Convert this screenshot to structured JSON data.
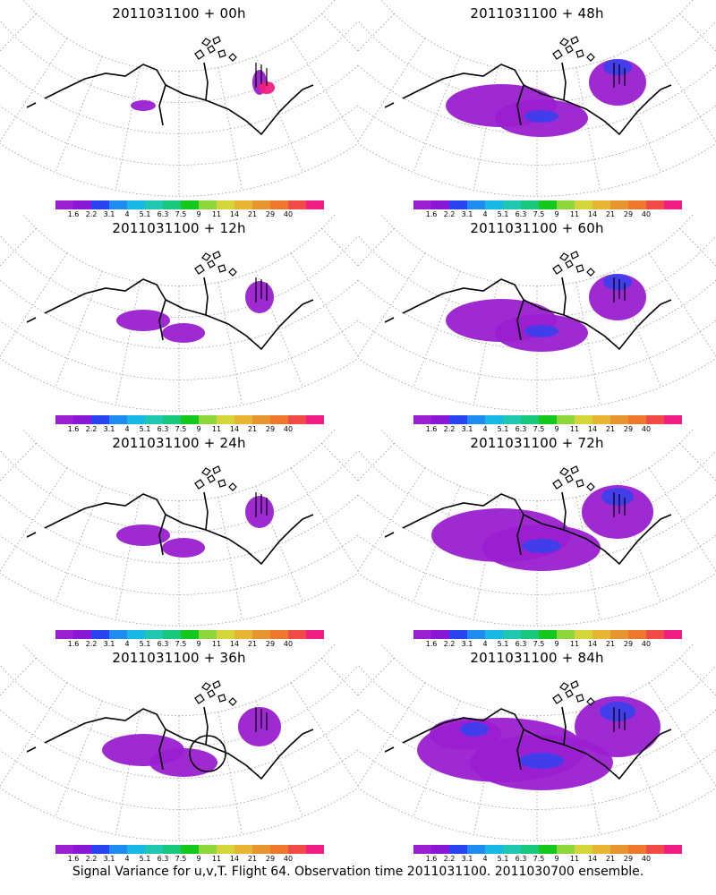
{
  "caption": "Signal Variance for u,v,T. Flight 64. Observation time 2011031100. 2011030700 ensemble.",
  "colorbar": {
    "colors": [
      "#9b1fd0",
      "#8a17d8",
      "#2a45f0",
      "#1f8cf0",
      "#19b9e6",
      "#20c8b0",
      "#19c87a",
      "#14c81e",
      "#8fd63a",
      "#d6d63a",
      "#e6b432",
      "#e6962d",
      "#f0782d",
      "#f04b46",
      "#f01e82"
    ],
    "ticks": [
      "1.6",
      "2.2",
      "3.1",
      "4",
      "5.1",
      "6.3",
      "7.5",
      "9",
      "11",
      "14",
      "21",
      "29",
      "40"
    ]
  },
  "panels": [
    {
      "title": "2011031100 + 00h",
      "spread": 0,
      "colored": "sparse"
    },
    {
      "title": "2011031100 + 48h",
      "spread": 3,
      "colored": "medium"
    },
    {
      "title": "2011031100 + 12h",
      "spread": 1,
      "colored": "sparse"
    },
    {
      "title": "2011031100 + 60h",
      "spread": 3,
      "colored": "medium"
    },
    {
      "title": "2011031100 + 24h",
      "spread": 1,
      "colored": "small"
    },
    {
      "title": "2011031100 + 72h",
      "spread": 4,
      "colored": "large"
    },
    {
      "title": "2011031100 + 36h",
      "spread": 2,
      "colored": "small"
    },
    {
      "title": "2011031100 + 84h",
      "spread": 5,
      "colored": "large"
    }
  ]
}
